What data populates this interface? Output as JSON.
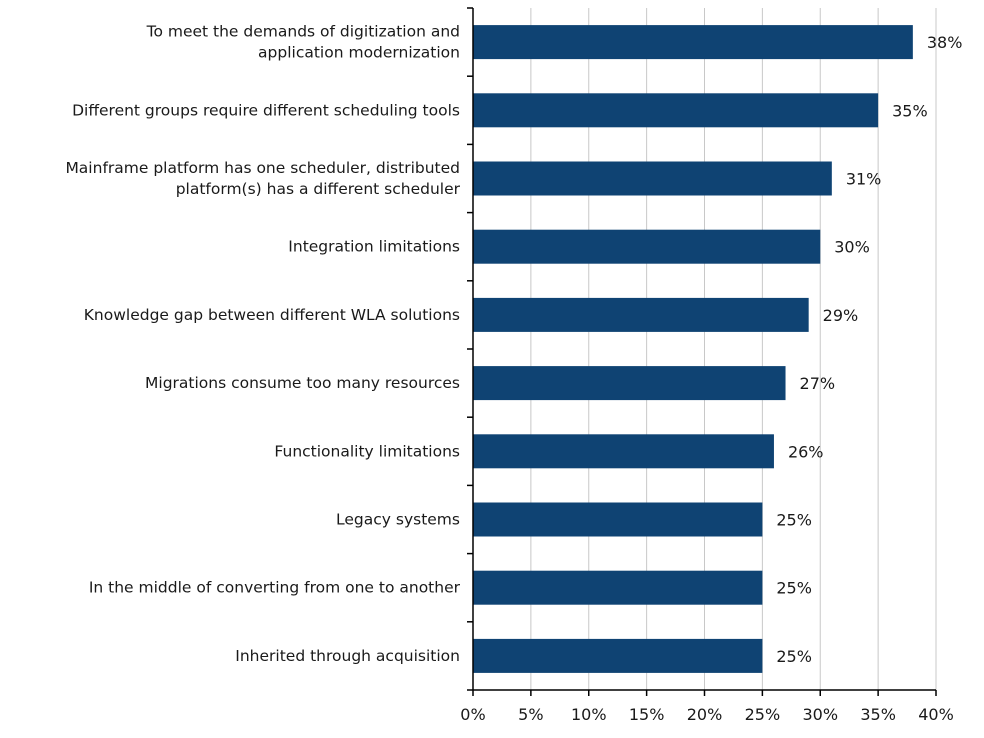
{
  "chart_data": {
    "type": "bar",
    "orientation": "horizontal",
    "categories": [
      [
        "To meet the demands of digitization and",
        "application modernization"
      ],
      [
        "Different groups require different scheduling tools"
      ],
      [
        "Mainframe platform has one scheduler, distributed",
        "platform(s) has a different scheduler"
      ],
      [
        "Integration limitations"
      ],
      [
        "Knowledge gap between different WLA solutions"
      ],
      [
        "Migrations consume too many resources"
      ],
      [
        "Functionality limitations"
      ],
      [
        "Legacy systems"
      ],
      [
        "In the middle of converting from one to another"
      ],
      [
        "Inherited through acquisition"
      ]
    ],
    "values": [
      38,
      35,
      31,
      30,
      29,
      27,
      26,
      25,
      25,
      25
    ],
    "value_labels": [
      "38%",
      "35%",
      "31%",
      "30%",
      "29%",
      "27%",
      "26%",
      "25%",
      "25%",
      "25%"
    ],
    "xlim": [
      0,
      40
    ],
    "xticks": [
      0,
      5,
      10,
      15,
      20,
      25,
      30,
      35,
      40
    ],
    "xtick_labels": [
      "0%",
      "5%",
      "10%",
      "15%",
      "20%",
      "25%",
      "30%",
      "35%",
      "40%"
    ],
    "grid": "vertical",
    "bar_color": "#0f4373",
    "grid_color": "#c8c8c8",
    "title": "",
    "xlabel": "",
    "ylabel": ""
  }
}
